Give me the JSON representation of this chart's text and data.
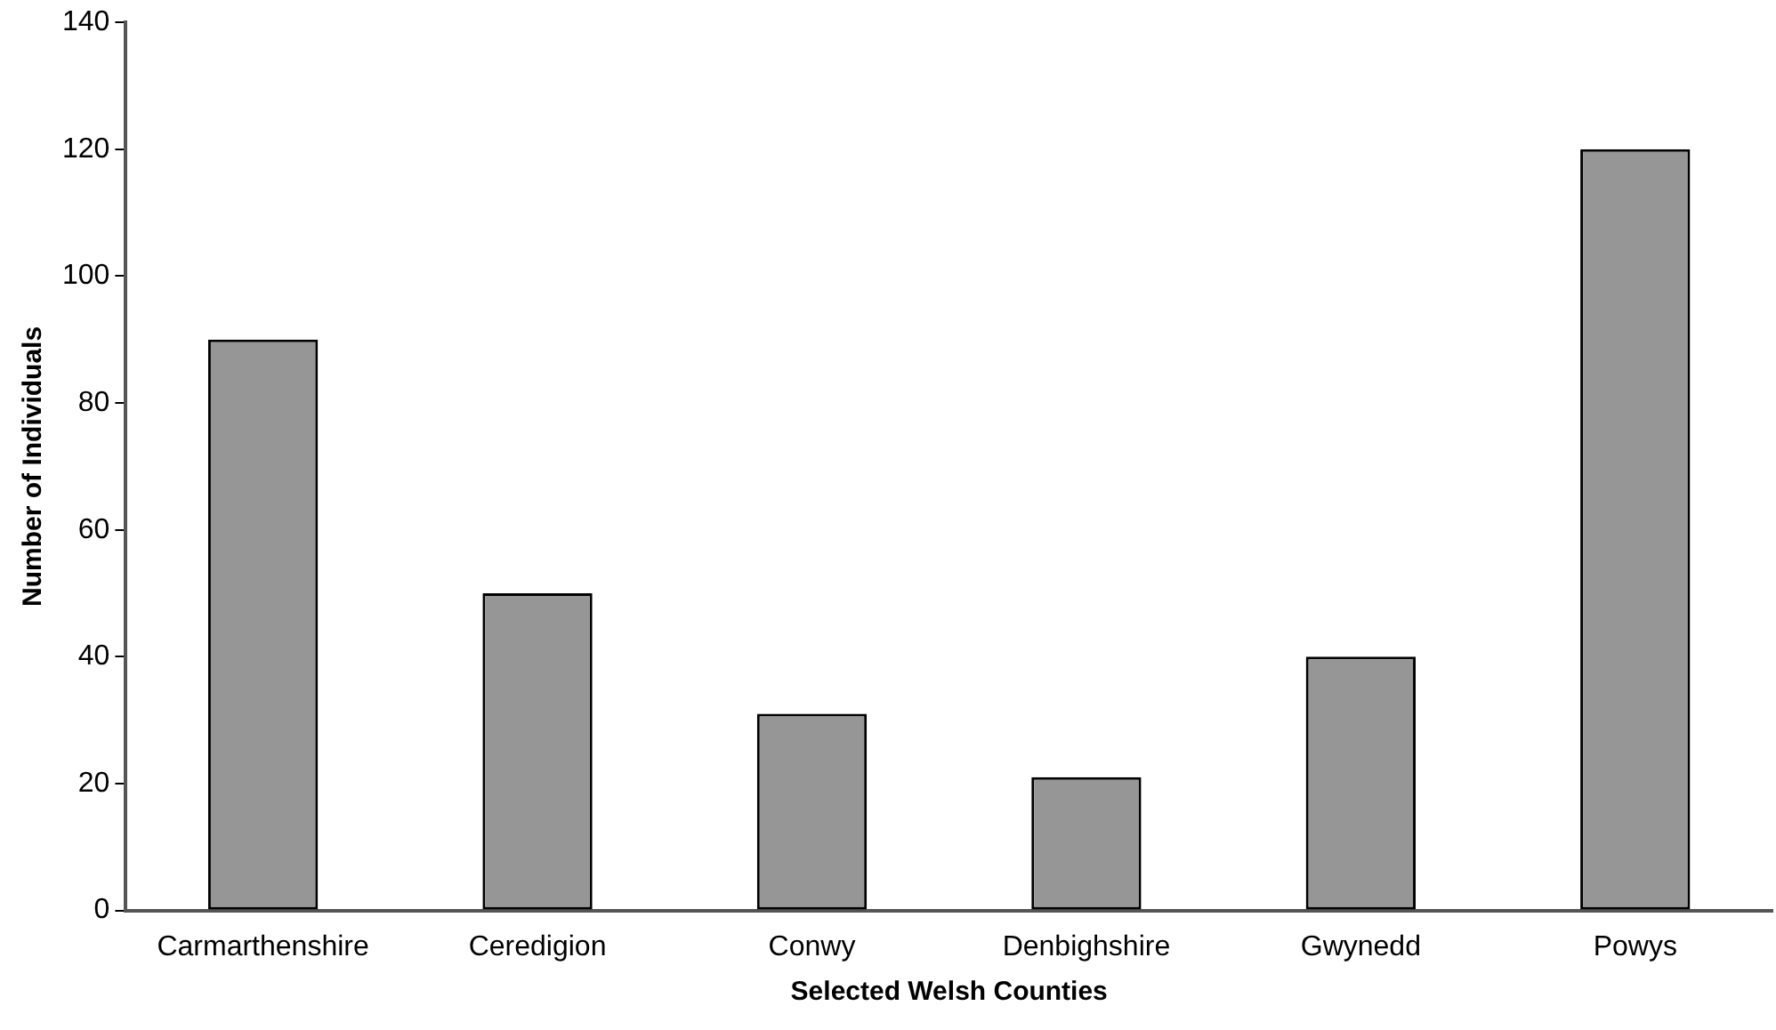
{
  "chart_data": {
    "type": "bar",
    "xlabel": "Selected Welsh Counties",
    "ylabel": "Number of Individuals",
    "categories": [
      "Carmarthenshire",
      "Ceredigion",
      "Conwy",
      "Denbighshire",
      "Gwynedd",
      "Powys"
    ],
    "values": [
      90,
      50,
      31,
      21,
      40,
      120
    ],
    "color": "#969696",
    "ylim": [
      0,
      140
    ],
    "yticks": [
      0,
      20,
      40,
      60,
      80,
      100,
      120,
      140
    ],
    "grid": false,
    "legend": false
  }
}
